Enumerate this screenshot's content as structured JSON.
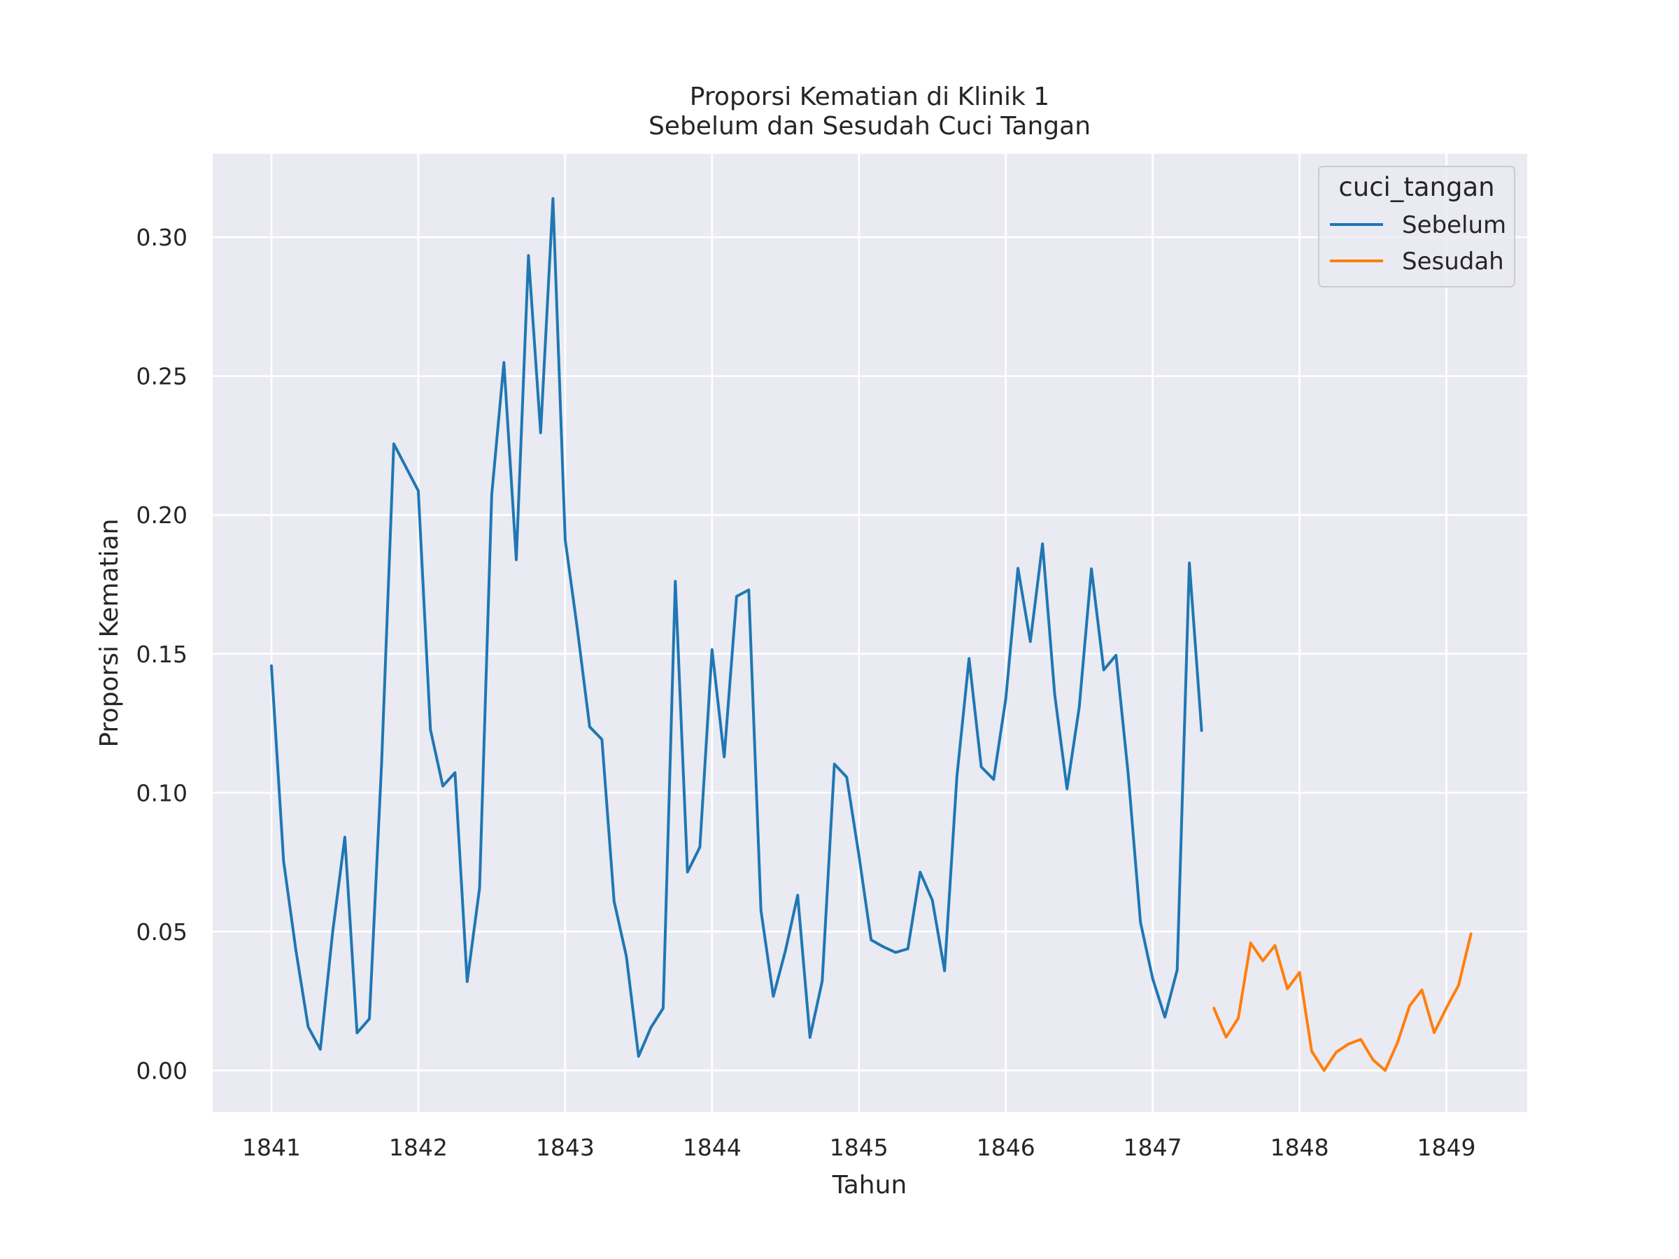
{
  "chart_data": {
    "type": "line",
    "title": [
      "Proporsi Kematian di Klinik 1",
      "Sebelum dan Sesudah Cuci Tangan"
    ],
    "xlabel": "Tahun",
    "ylabel": "Proporsi Kematian",
    "xlim": [
      1840.6,
      1849.55
    ],
    "ylim": [
      -0.015,
      0.33
    ],
    "xticks": [
      1841,
      1842,
      1843,
      1844,
      1845,
      1846,
      1847,
      1848,
      1849
    ],
    "xtick_labels": [
      "1841",
      "1842",
      "1843",
      "1844",
      "1845",
      "1846",
      "1847",
      "1848",
      "1849"
    ],
    "yticks": [
      0.0,
      0.05,
      0.1,
      0.15,
      0.2,
      0.25,
      0.3
    ],
    "ytick_labels": [
      "0.00",
      "0.05",
      "0.10",
      "0.15",
      "0.20",
      "0.25",
      "0.30"
    ],
    "grid": true,
    "legend": {
      "title": "cuci_tangan",
      "placement": "top-right"
    },
    "background_color": "#eaeaf2",
    "series": [
      {
        "name": "Sebelum",
        "color": "#1f77b4",
        "x": [
          1841.0,
          1841.083,
          1841.167,
          1841.25,
          1841.333,
          1841.417,
          1841.5,
          1841.583,
          1841.667,
          1841.75,
          1841.833,
          1842.0,
          1842.083,
          1842.167,
          1842.25,
          1842.333,
          1842.417,
          1842.5,
          1842.583,
          1842.667,
          1842.75,
          1842.833,
          1842.917,
          1843.0,
          1843.083,
          1843.167,
          1843.25,
          1843.333,
          1843.417,
          1843.5,
          1843.583,
          1843.667,
          1843.75,
          1843.833,
          1843.917,
          1844.0,
          1844.083,
          1844.167,
          1844.25,
          1844.333,
          1844.417,
          1844.5,
          1844.583,
          1844.667,
          1844.75,
          1844.833,
          1844.917,
          1845.0,
          1845.083,
          1845.167,
          1845.25,
          1845.333,
          1845.417,
          1845.5,
          1845.583,
          1845.667,
          1845.75,
          1845.833,
          1845.917,
          1846.0,
          1846.083,
          1846.167,
          1846.25,
          1846.333,
          1846.417,
          1846.5,
          1846.583,
          1846.667,
          1846.75,
          1846.833,
          1846.917,
          1847.0,
          1847.083,
          1847.167,
          1847.25,
          1847.333
        ],
        "y": [
          0.1457,
          0.0753,
          0.0432,
          0.0157,
          0.0076,
          0.0498,
          0.084,
          0.0135,
          0.0186,
          0.1101,
          0.2256,
          0.2087,
          0.1227,
          0.1024,
          0.1072,
          0.032,
          0.0656,
          0.2073,
          0.2549,
          0.1839,
          0.2934,
          0.2296,
          0.3139,
          0.1911,
          0.1589,
          0.1237,
          0.1192,
          0.0609,
          0.041,
          0.0051,
          0.0154,
          0.0224,
          0.1761,
          0.0714,
          0.0804,
          0.1515,
          0.1129,
          0.1707,
          0.173,
          0.0577,
          0.0267,
          0.0432,
          0.0631,
          0.0119,
          0.0322,
          0.1103,
          0.1056,
          0.0774,
          0.047,
          0.0445,
          0.0425,
          0.0438,
          0.0714,
          0.0613,
          0.0359,
          0.1058,
          0.1483,
          0.1093,
          0.1048,
          0.1338,
          0.1808,
          0.1544,
          0.1896,
          0.1354,
          0.1014,
          0.1308,
          0.1806,
          0.1442,
          0.1495,
          0.1069,
          0.0534,
          0.0331,
          0.0192,
          0.0362,
          0.1827,
          0.1224
        ]
      },
      {
        "name": "Sesudah",
        "color": "#ff7f0e",
        "x": [
          1847.417,
          1847.5,
          1847.583,
          1847.667,
          1847.75,
          1847.833,
          1847.917,
          1848.0,
          1848.083,
          1848.167,
          1848.25,
          1848.333,
          1848.417,
          1848.5,
          1848.583,
          1848.667,
          1848.75,
          1848.833,
          1848.917,
          1849.0,
          1849.083,
          1849.167
        ],
        "y": [
          0.0224,
          0.012,
          0.0188,
          0.0459,
          0.0395,
          0.045,
          0.0294,
          0.0353,
          0.0069,
          0.0,
          0.0066,
          0.0095,
          0.0112,
          0.0038,
          0.0,
          0.01,
          0.0233,
          0.029,
          0.0136,
          0.0225,
          0.0307,
          0.0492
        ]
      }
    ]
  }
}
